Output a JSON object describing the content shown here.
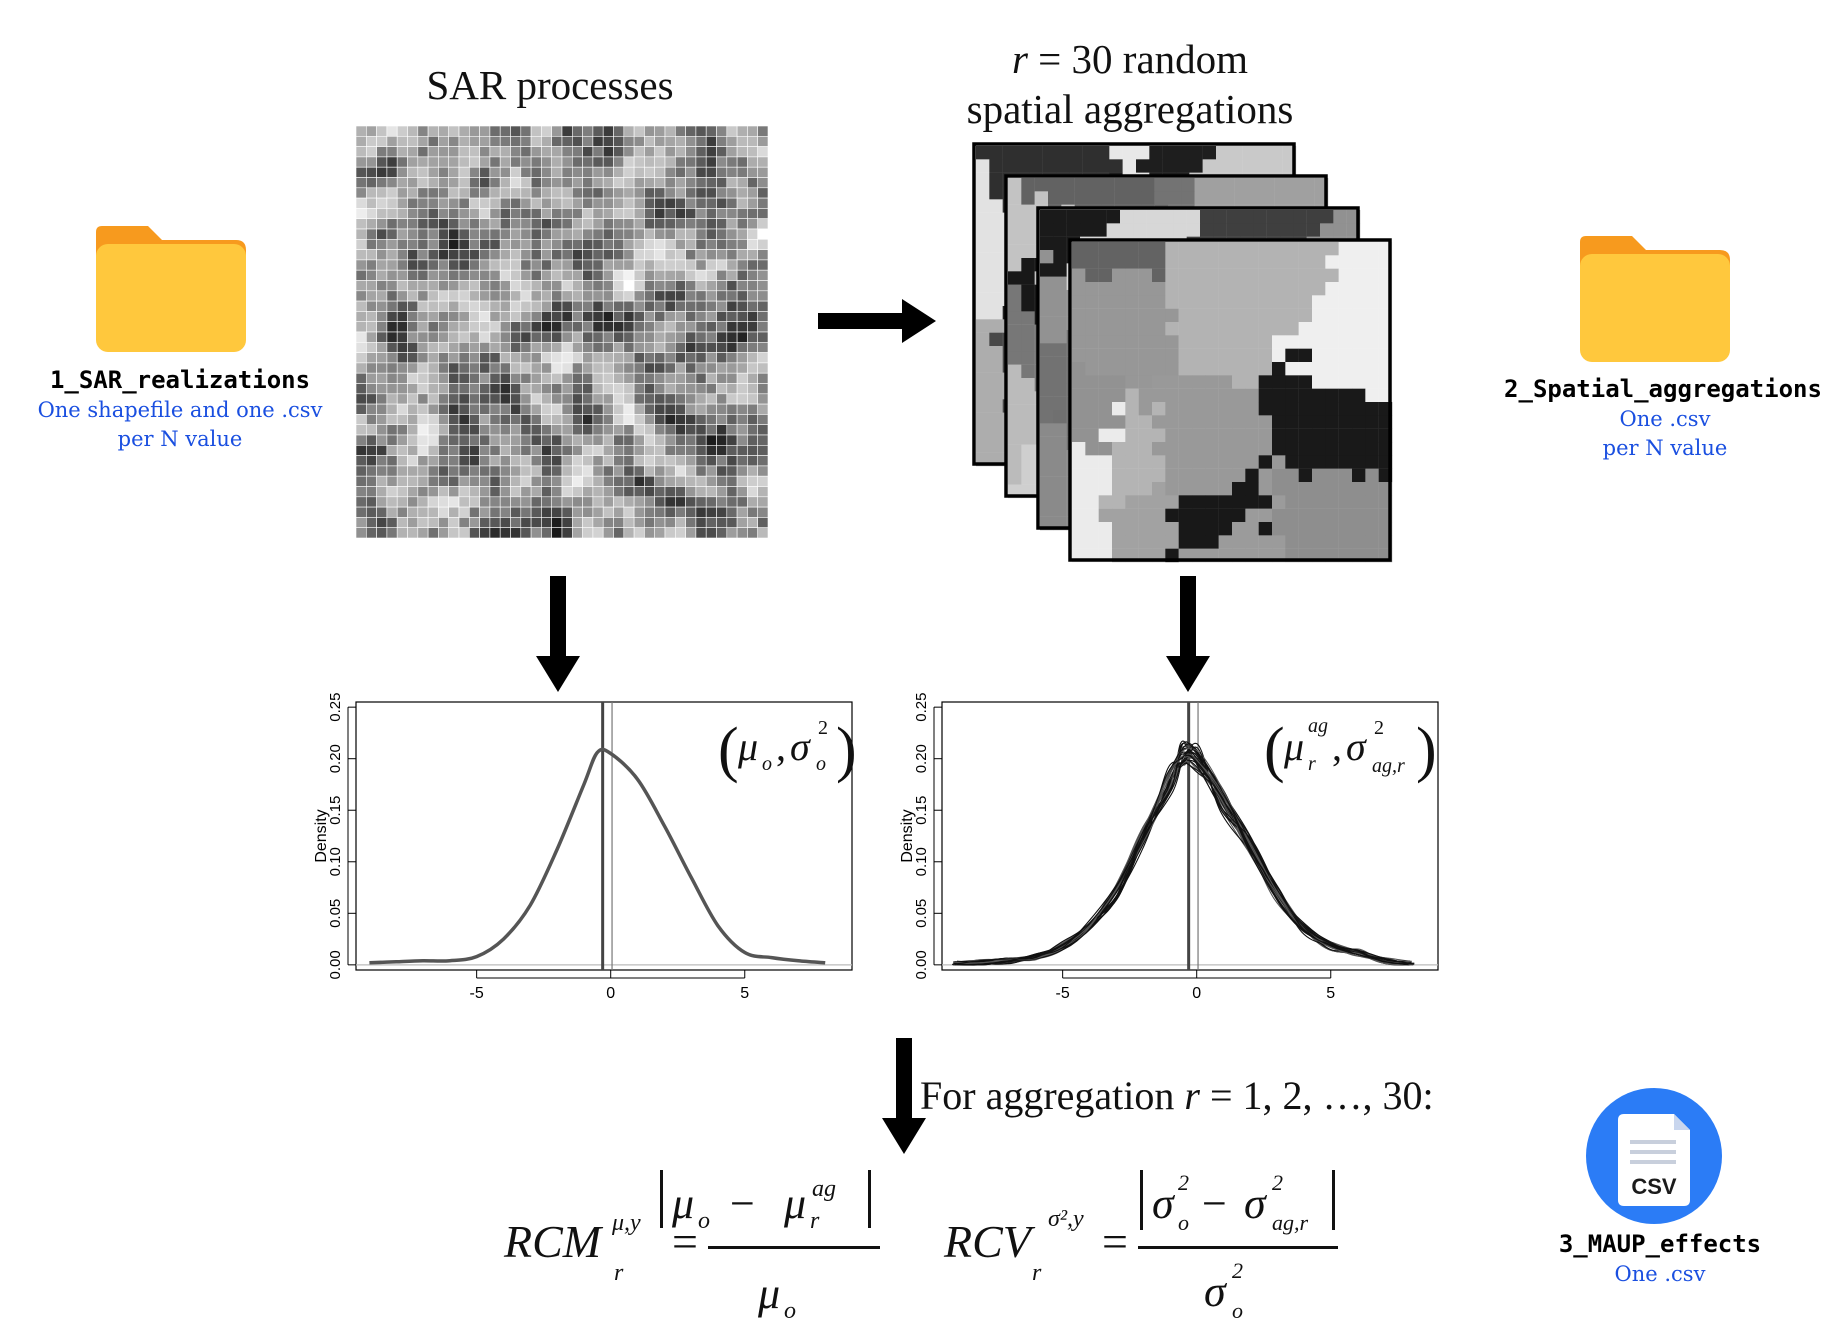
{
  "sar": {
    "title": "SAR processes"
  },
  "aggregation": {
    "title_line1": "r = 30 random",
    "title_line1_var": "r",
    "title_line1_rest": " = 30 random",
    "title_line2": "spatial aggregations"
  },
  "folders": [
    {
      "name": "1_SAR_realizations",
      "description_line1": "One shapefile and one .csv",
      "description_line2": "per N value",
      "icon": "folder-icon",
      "color": "#FFC83D",
      "tab_color": "#F79A1E"
    },
    {
      "name": "2_Spatial_aggregations",
      "description_line1": "One .csv",
      "description_line2": "per N value",
      "icon": "folder-icon",
      "color": "#FFC83D",
      "tab_color": "#F79A1E"
    },
    {
      "name": "3_MAUP_effects",
      "description_line1": "One .csv",
      "icon": "csv-file-icon",
      "badge_text": "CSV",
      "color": "#2B7CF6"
    }
  ],
  "loop_caption": {
    "prefix": "For aggregation ",
    "var": "r",
    "suffix": " = 1, 2, …, 30:"
  },
  "formulas": {
    "rcm": {
      "name": "RCM",
      "superscript": "μ,y",
      "subscript": "r"
    },
    "rcv": {
      "name": "RCV",
      "superscript": "σ²,y",
      "subscript": "r"
    }
  },
  "chart_data": [
    {
      "type": "line",
      "title": "",
      "annotation": "(μo, σo²)",
      "xlabel": "",
      "ylabel": "Density",
      "xlim": [
        -9.5,
        9
      ],
      "ylim": [
        -0.005,
        0.255
      ],
      "xticks": [
        "-5",
        "0",
        "5"
      ],
      "yticks": [
        "0.00",
        "0.05",
        "0.10",
        "0.15",
        "0.20",
        "0.25"
      ],
      "vline": -0.3,
      "series": [
        {
          "x": [
            -9,
            -8,
            -7,
            -6,
            -5,
            -4,
            -3,
            -2,
            -1,
            -0.5,
            0,
            1,
            2,
            3,
            4,
            5,
            6,
            7,
            8
          ],
          "values": [
            0.002,
            0.003,
            0.004,
            0.004,
            0.008,
            0.025,
            0.058,
            0.112,
            0.175,
            0.206,
            0.205,
            0.18,
            0.135,
            0.085,
            0.038,
            0.012,
            0.007,
            0.004,
            0.002
          ]
        }
      ]
    },
    {
      "type": "line",
      "title": "",
      "annotation": "(μr^ag, σ²ag,r)",
      "xlabel": "",
      "ylabel": "Density",
      "xlim": [
        -9.5,
        9
      ],
      "ylim": [
        -0.005,
        0.255
      ],
      "xticks": [
        "-5",
        "0",
        "5"
      ],
      "yticks": [
        "0.00",
        "0.05",
        "0.10",
        "0.15",
        "0.20",
        "0.25"
      ],
      "vline": -0.3,
      "series_count": 30,
      "series": [
        {
          "x": [
            -9,
            -8,
            -7,
            -6,
            -5,
            -4,
            -3,
            -2,
            -1,
            -0.5,
            0,
            1,
            2,
            3,
            4,
            5,
            6,
            7,
            8
          ],
          "values": [
            0.001,
            0.002,
            0.004,
            0.008,
            0.018,
            0.038,
            0.072,
            0.125,
            0.18,
            0.205,
            0.2,
            0.16,
            0.115,
            0.07,
            0.035,
            0.018,
            0.012,
            0.004,
            0.001
          ]
        }
      ]
    }
  ]
}
